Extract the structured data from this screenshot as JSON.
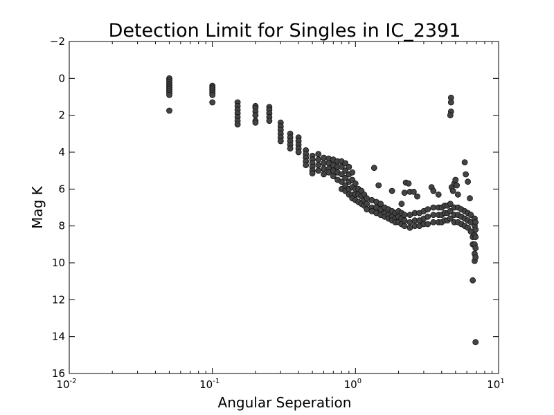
{
  "chart_data": {
    "type": "scatter",
    "title": "Detection Limit for Singles in IC_2391",
    "xlabel": "Angular Seperation",
    "ylabel": "Mag K",
    "x_scale": "log",
    "xlim": [
      0.01,
      10
    ],
    "ylim": [
      -2,
      16
    ],
    "y_inverted": true,
    "grid": false,
    "legend": "none",
    "marker_color": "#444444",
    "marker_edge_color": "#111111",
    "x_ticks": [
      {
        "value": 0.01,
        "base": "10",
        "exp": "-2"
      },
      {
        "value": 0.1,
        "base": "10",
        "exp": "-1"
      },
      {
        "value": 1,
        "base": "10",
        "exp": "0"
      },
      {
        "value": 10,
        "base": "10",
        "exp": "1"
      }
    ],
    "y_ticks": [
      {
        "value": -2,
        "label": "−2"
      },
      {
        "value": 0,
        "label": "0"
      },
      {
        "value": 2,
        "label": "2"
      },
      {
        "value": 4,
        "label": "4"
      },
      {
        "value": 6,
        "label": "6"
      },
      {
        "value": 8,
        "label": "8"
      },
      {
        "value": 10,
        "label": "10"
      },
      {
        "value": 12,
        "label": "12"
      },
      {
        "value": 14,
        "label": "14"
      },
      {
        "value": 16,
        "label": "16"
      }
    ],
    "series": [
      {
        "points": [
          [
            0.05,
            0.0
          ],
          [
            0.05,
            0.1
          ],
          [
            0.05,
            0.2
          ],
          [
            0.05,
            0.3
          ],
          [
            0.05,
            0.4
          ],
          [
            0.05,
            0.5
          ],
          [
            0.05,
            0.6
          ],
          [
            0.05,
            0.7
          ],
          [
            0.05,
            0.8
          ],
          [
            0.05,
            0.9
          ],
          [
            0.05,
            1.75
          ],
          [
            0.1,
            0.4
          ],
          [
            0.1,
            0.5
          ],
          [
            0.1,
            0.6
          ],
          [
            0.1,
            0.7
          ],
          [
            0.1,
            0.8
          ],
          [
            0.1,
            0.9
          ],
          [
            0.1,
            1.3
          ],
          [
            0.15,
            1.3
          ],
          [
            0.15,
            1.5
          ],
          [
            0.15,
            1.7
          ],
          [
            0.15,
            1.9
          ],
          [
            0.15,
            2.1
          ],
          [
            0.15,
            2.3
          ],
          [
            0.15,
            2.5
          ],
          [
            0.2,
            1.5
          ],
          [
            0.2,
            1.6
          ],
          [
            0.2,
            1.8
          ],
          [
            0.2,
            2.0
          ],
          [
            0.2,
            2.3
          ],
          [
            0.2,
            2.4
          ],
          [
            0.25,
            1.55
          ],
          [
            0.25,
            1.7
          ],
          [
            0.25,
            1.9
          ],
          [
            0.25,
            2.1
          ],
          [
            0.25,
            2.3
          ],
          [
            0.3,
            2.4
          ],
          [
            0.3,
            2.6
          ],
          [
            0.3,
            2.8
          ],
          [
            0.3,
            3.0
          ],
          [
            0.3,
            3.2
          ],
          [
            0.3,
            3.4
          ],
          [
            0.35,
            3.0
          ],
          [
            0.35,
            3.2
          ],
          [
            0.35,
            3.4
          ],
          [
            0.35,
            3.6
          ],
          [
            0.35,
            3.8
          ],
          [
            0.4,
            3.2
          ],
          [
            0.4,
            3.4
          ],
          [
            0.4,
            3.6
          ],
          [
            0.4,
            3.8
          ],
          [
            0.4,
            4.0
          ],
          [
            0.45,
            3.9
          ],
          [
            0.45,
            4.1
          ],
          [
            0.45,
            4.3
          ],
          [
            0.45,
            4.5
          ],
          [
            0.45,
            4.7
          ],
          [
            0.5,
            4.2
          ],
          [
            0.5,
            4.4
          ],
          [
            0.5,
            4.6
          ],
          [
            0.5,
            4.8
          ],
          [
            0.5,
            5.0
          ],
          [
            0.5,
            5.15
          ],
          [
            0.55,
            4.1
          ],
          [
            0.55,
            4.4
          ],
          [
            0.55,
            4.7
          ],
          [
            0.55,
            5.0
          ],
          [
            0.6,
            4.3
          ],
          [
            0.6,
            4.6
          ],
          [
            0.6,
            4.9
          ],
          [
            0.6,
            5.2
          ],
          [
            0.65,
            4.35
          ],
          [
            0.65,
            4.6
          ],
          [
            0.65,
            4.9
          ],
          [
            0.65,
            5.1
          ],
          [
            0.7,
            4.4
          ],
          [
            0.7,
            4.7
          ],
          [
            0.7,
            5.0
          ],
          [
            0.7,
            5.3
          ],
          [
            0.75,
            4.5
          ],
          [
            0.75,
            4.8
          ],
          [
            0.75,
            5.1
          ],
          [
            0.75,
            5.5
          ],
          [
            0.8,
            4.5
          ],
          [
            0.8,
            4.8
          ],
          [
            0.8,
            5.2
          ],
          [
            0.8,
            5.6
          ],
          [
            0.8,
            6.0
          ],
          [
            0.85,
            4.6
          ],
          [
            0.85,
            5.0
          ],
          [
            0.85,
            5.4
          ],
          [
            0.85,
            5.8
          ],
          [
            0.85,
            6.1
          ],
          [
            0.9,
            4.8
          ],
          [
            0.9,
            5.2
          ],
          [
            0.9,
            5.6
          ],
          [
            0.9,
            6.0
          ],
          [
            0.9,
            6.3
          ],
          [
            0.95,
            5.1
          ],
          [
            0.95,
            5.5
          ],
          [
            0.95,
            5.9
          ],
          [
            0.95,
            6.3
          ],
          [
            0.95,
            6.5
          ],
          [
            1.0,
            5.7
          ],
          [
            1.0,
            6.0
          ],
          [
            1.0,
            6.3
          ],
          [
            1.0,
            6.6
          ],
          [
            1.05,
            6.0
          ],
          [
            1.05,
            6.3
          ],
          [
            1.05,
            6.7
          ],
          [
            1.1,
            6.1
          ],
          [
            1.1,
            6.4
          ],
          [
            1.1,
            6.8
          ],
          [
            1.15,
            6.3
          ],
          [
            1.15,
            6.6
          ],
          [
            1.15,
            6.9
          ],
          [
            1.2,
            6.5
          ],
          [
            1.2,
            6.8
          ],
          [
            1.2,
            7.1
          ],
          [
            1.3,
            6.6
          ],
          [
            1.3,
            7.0
          ],
          [
            1.3,
            7.2
          ],
          [
            1.35,
            4.85
          ],
          [
            1.45,
            5.8
          ],
          [
            1.4,
            6.7
          ],
          [
            1.4,
            7.0
          ],
          [
            1.4,
            7.3
          ],
          [
            1.5,
            6.8
          ],
          [
            1.5,
            7.1
          ],
          [
            1.5,
            7.4
          ],
          [
            1.6,
            7.0
          ],
          [
            1.6,
            7.3
          ],
          [
            1.6,
            7.5
          ],
          [
            1.7,
            7.1
          ],
          [
            1.7,
            7.4
          ],
          [
            1.7,
            7.6
          ],
          [
            1.8,
            6.1
          ],
          [
            1.8,
            7.2
          ],
          [
            1.8,
            7.5
          ],
          [
            1.8,
            7.7
          ],
          [
            1.9,
            7.3
          ],
          [
            1.9,
            7.6
          ],
          [
            1.9,
            7.8
          ],
          [
            2.0,
            7.2
          ],
          [
            2.0,
            7.5
          ],
          [
            2.0,
            7.8
          ],
          [
            2.1,
            6.8
          ],
          [
            2.1,
            7.3
          ],
          [
            2.1,
            7.6
          ],
          [
            2.1,
            7.9
          ],
          [
            2.2,
            6.2
          ],
          [
            2.2,
            7.4
          ],
          [
            2.2,
            7.7
          ],
          [
            2.2,
            8.0
          ],
          [
            2.25,
            5.65
          ],
          [
            2.35,
            5.7
          ],
          [
            2.4,
            6.15
          ],
          [
            2.55,
            6.15
          ],
          [
            2.7,
            6.4
          ],
          [
            2.4,
            7.4
          ],
          [
            2.4,
            7.8
          ],
          [
            2.4,
            8.1
          ],
          [
            2.6,
            7.3
          ],
          [
            2.6,
            7.7
          ],
          [
            2.6,
            8.0
          ],
          [
            2.8,
            7.3
          ],
          [
            2.8,
            7.7
          ],
          [
            2.8,
            8.0
          ],
          [
            3.0,
            7.2
          ],
          [
            3.0,
            7.6
          ],
          [
            3.0,
            7.9
          ],
          [
            3.2,
            7.1
          ],
          [
            3.2,
            7.5
          ],
          [
            3.2,
            7.9
          ],
          [
            3.4,
            5.9
          ],
          [
            3.5,
            6.1
          ],
          [
            3.8,
            6.3
          ],
          [
            3.5,
            7.0
          ],
          [
            3.5,
            7.4
          ],
          [
            3.5,
            7.8
          ],
          [
            3.8,
            7.0
          ],
          [
            3.8,
            7.4
          ],
          [
            3.8,
            7.8
          ],
          [
            4.0,
            7.0
          ],
          [
            4.0,
            7.4
          ],
          [
            4.0,
            7.8
          ],
          [
            4.2,
            6.9
          ],
          [
            4.2,
            7.3
          ],
          [
            4.2,
            7.7
          ],
          [
            4.4,
            6.9
          ],
          [
            4.4,
            7.3
          ],
          [
            4.4,
            7.7
          ],
          [
            4.6,
            6.8
          ],
          [
            4.6,
            7.2
          ],
          [
            4.6,
            7.6
          ],
          [
            4.65,
            1.05
          ],
          [
            4.65,
            1.3
          ],
          [
            4.65,
            1.8
          ],
          [
            4.6,
            2.0
          ],
          [
            4.7,
            5.9
          ],
          [
            4.8,
            6.1
          ],
          [
            4.9,
            5.7
          ],
          [
            5.0,
            5.5
          ],
          [
            5.1,
            5.8
          ],
          [
            5.2,
            6.3
          ],
          [
            4.9,
            7.0
          ],
          [
            4.9,
            7.4
          ],
          [
            4.9,
            7.8
          ],
          [
            5.2,
            7.0
          ],
          [
            5.2,
            7.4
          ],
          [
            5.2,
            7.8
          ],
          [
            5.5,
            7.1
          ],
          [
            5.5,
            7.5
          ],
          [
            5.5,
            7.9
          ],
          [
            5.8,
            4.55
          ],
          [
            5.9,
            5.2
          ],
          [
            6.1,
            5.6
          ],
          [
            6.3,
            6.5
          ],
          [
            5.8,
            7.2
          ],
          [
            5.8,
            7.6
          ],
          [
            5.8,
            8.0
          ],
          [
            6.1,
            7.3
          ],
          [
            6.1,
            7.7
          ],
          [
            6.1,
            8.1
          ],
          [
            6.4,
            7.4
          ],
          [
            6.4,
            7.8
          ],
          [
            6.4,
            8.3
          ],
          [
            6.6,
            8.6
          ],
          [
            6.6,
            9.0
          ],
          [
            6.6,
            10.95
          ],
          [
            6.8,
            7.6
          ],
          [
            6.8,
            8.0
          ],
          [
            6.8,
            8.5
          ],
          [
            6.8,
            9.0
          ],
          [
            6.8,
            9.5
          ],
          [
            6.8,
            9.9
          ],
          [
            6.9,
            7.8
          ],
          [
            6.9,
            8.2
          ],
          [
            6.9,
            8.6
          ],
          [
            6.9,
            9.2
          ],
          [
            6.9,
            9.7
          ],
          [
            6.9,
            14.3
          ]
        ]
      }
    ]
  }
}
